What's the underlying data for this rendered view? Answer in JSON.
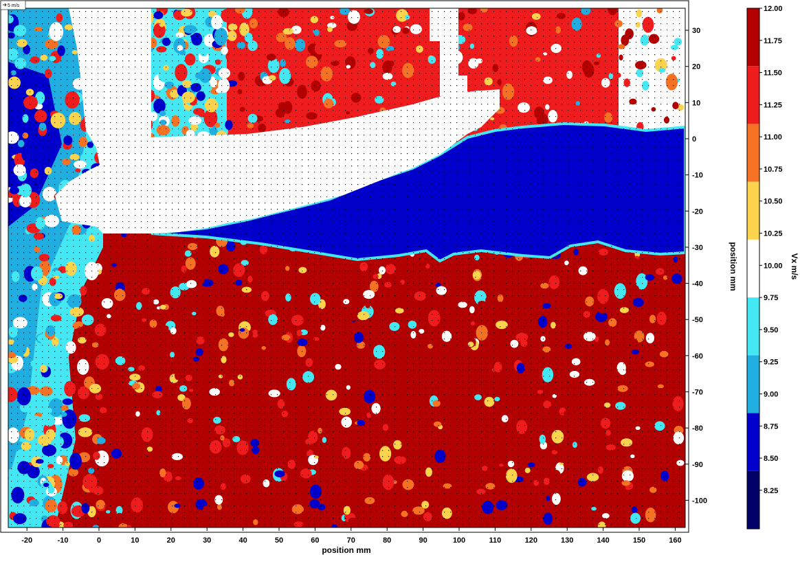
{
  "chart_data": {
    "type": "heatmap",
    "title": "",
    "xlabel": "position mm",
    "ylabel": "position mm",
    "xlim": [
      -25,
      163
    ],
    "ylim": [
      -110,
      36
    ],
    "xticks": [
      -20,
      -10,
      0,
      10,
      20,
      30,
      40,
      50,
      60,
      70,
      80,
      90,
      100,
      110,
      120,
      130,
      140,
      150,
      160
    ],
    "yticks": [
      30,
      20,
      10,
      0,
      -10,
      -20,
      -30,
      -40,
      -50,
      -60,
      -70,
      -80,
      -90,
      -100
    ],
    "colorbar": {
      "label": "Vx m/s",
      "range": [
        8.0,
        12.0
      ],
      "ticks": [
        "12.00",
        "11.75",
        "11.50",
        "11.25",
        "11.00",
        "10.75",
        "10.50",
        "10.25",
        "10.00",
        "9.75",
        "9.50",
        "9.25",
        "9.00",
        "8.75",
        "8.50",
        "8.25"
      ],
      "levels": [
        {
          "min": 11.5,
          "max": 12.0,
          "color": "#b30000"
        },
        {
          "min": 11.0,
          "max": 11.5,
          "color": "#ee1c1c"
        },
        {
          "min": 10.5,
          "max": 11.0,
          "color": "#f57224"
        },
        {
          "min": 10.0,
          "max": 10.5,
          "color": "#fcd34d"
        },
        {
          "min": 9.5,
          "max": 10.0,
          "color": "#ffffff"
        },
        {
          "min": 9.0,
          "max": 9.5,
          "color": "#44e8f4"
        },
        {
          "min": 8.5,
          "max": 9.0,
          "color": "#20aee0"
        },
        {
          "min": 8.0,
          "max": 8.5,
          "color": "#0000cc"
        },
        {
          "min": 7.5,
          "max": 8.0,
          "color": "#000066"
        }
      ]
    },
    "regions": [
      {
        "name": "masked-airfoil",
        "value": null
      },
      {
        "name": "wake",
        "value": 8.0
      },
      {
        "name": "lower-freestream",
        "value": 11.6
      },
      {
        "name": "upper-right",
        "value": 11.2
      },
      {
        "name": "upper-left",
        "value": 9.0
      }
    ],
    "vector_reference": "5 m/s",
    "grid": false
  }
}
